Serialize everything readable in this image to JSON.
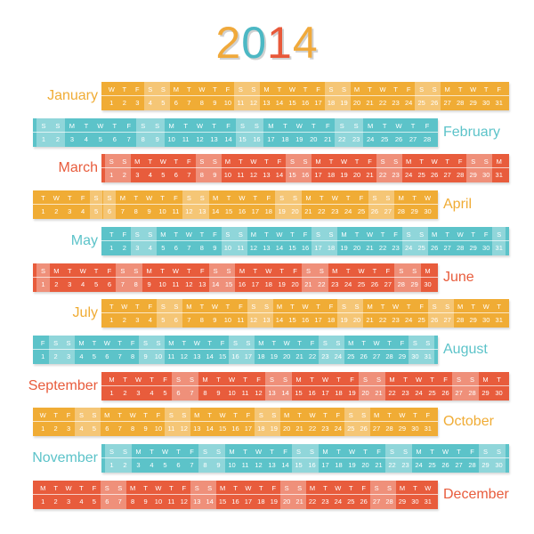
{
  "year_digits": [
    "2",
    "0",
    "1",
    "4"
  ],
  "year_colors": [
    "#f0a93b",
    "#4cb8c4",
    "#e8593a",
    "#f0a93b"
  ],
  "weekday_letters": [
    "M",
    "T",
    "W",
    "T",
    "F",
    "S",
    "S"
  ],
  "colors": {
    "orange": "#f0ac35",
    "teal": "#5cc3c9",
    "red": "#e85c3c"
  },
  "months": [
    {
      "name": "January",
      "days": 31,
      "first_weekday": 2,
      "color": "#f0ac35",
      "label_side": "left"
    },
    {
      "name": "February",
      "days": 28,
      "first_weekday": 5,
      "color": "#5cc3c9",
      "label_side": "right"
    },
    {
      "name": "March",
      "days": 31,
      "first_weekday": 5,
      "color": "#e85c3c",
      "label_side": "left"
    },
    {
      "name": "April",
      "days": 30,
      "first_weekday": 1,
      "color": "#f0ac35",
      "label_side": "right"
    },
    {
      "name": "May",
      "days": 31,
      "first_weekday": 3,
      "color": "#5cc3c9",
      "label_side": "left"
    },
    {
      "name": "June",
      "days": 30,
      "first_weekday": 6,
      "color": "#e85c3c",
      "label_side": "right"
    },
    {
      "name": "July",
      "days": 31,
      "first_weekday": 1,
      "color": "#f0ac35",
      "label_side": "left"
    },
    {
      "name": "August",
      "days": 31,
      "first_weekday": 4,
      "color": "#5cc3c9",
      "label_side": "right"
    },
    {
      "name": "September",
      "days": 30,
      "first_weekday": 0,
      "color": "#e85c3c",
      "label_side": "left"
    },
    {
      "name": "October",
      "days": 31,
      "first_weekday": 2,
      "color": "#f0ac35",
      "label_side": "right"
    },
    {
      "name": "November",
      "days": 30,
      "first_weekday": 5,
      "color": "#5cc3c9",
      "label_side": "left"
    },
    {
      "name": "December",
      "days": 31,
      "first_weekday": 0,
      "color": "#e85c3c",
      "label_side": "right"
    }
  ]
}
